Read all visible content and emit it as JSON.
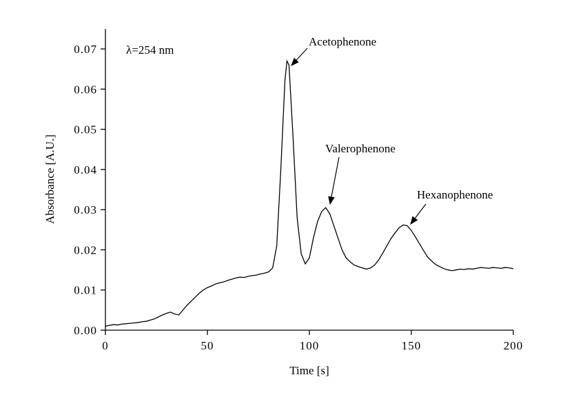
{
  "chart_data": {
    "type": "line",
    "x_label": "Time [s]",
    "y_label": "Absorbance [A.U.]",
    "annotations": [
      "λ=254 nm",
      "Acetophenone",
      "Valerophenone",
      "Hexanophenone"
    ],
    "color": "#000000",
    "xlim": [
      0,
      200
    ],
    "xticks": [
      0,
      50,
      100,
      150,
      200
    ],
    "ylim": [
      0,
      0.075
    ],
    "yticks": [
      {
        "value": 0,
        "label": "0.00"
      },
      0.01,
      0.02,
      0.03,
      0.04,
      0.05,
      0.06,
      0.07
    ],
    "x": [
      0,
      2,
      4,
      6,
      8,
      10,
      12,
      14,
      16,
      18,
      20,
      22,
      24,
      26,
      28,
      30,
      32,
      34,
      36,
      38,
      40,
      42,
      44,
      46,
      48,
      50,
      52,
      54,
      56,
      58,
      60,
      62,
      64,
      66,
      68,
      70,
      72,
      74,
      76,
      78,
      80,
      82,
      84,
      86,
      88,
      89,
      90,
      92,
      94,
      96,
      98,
      100,
      102,
      104,
      106,
      108,
      110,
      112,
      114,
      116,
      118,
      120,
      122,
      124,
      126,
      128,
      130,
      132,
      134,
      136,
      138,
      140,
      142,
      144,
      146,
      148,
      150,
      152,
      154,
      156,
      158,
      160,
      162,
      164,
      166,
      168,
      170,
      172,
      174,
      176,
      178,
      180,
      182,
      184,
      186,
      188,
      190,
      192,
      194,
      196,
      198,
      200
    ],
    "values": [
      0.001,
      0.0012,
      0.0014,
      0.0013,
      0.0015,
      0.0016,
      0.0017,
      0.0018,
      0.0019,
      0.0021,
      0.0022,
      0.0025,
      0.0028,
      0.0033,
      0.0038,
      0.0042,
      0.0045,
      0.004,
      0.0038,
      0.005,
      0.0062,
      0.0072,
      0.0082,
      0.0092,
      0.01,
      0.0106,
      0.011,
      0.0115,
      0.0118,
      0.012,
      0.0124,
      0.0127,
      0.013,
      0.0132,
      0.0131,
      0.0134,
      0.0136,
      0.0137,
      0.014,
      0.0142,
      0.0145,
      0.0155,
      0.021,
      0.04,
      0.062,
      0.067,
      0.066,
      0.048,
      0.028,
      0.019,
      0.0165,
      0.018,
      0.023,
      0.027,
      0.0295,
      0.0305,
      0.029,
      0.026,
      0.023,
      0.02,
      0.018,
      0.017,
      0.0162,
      0.0158,
      0.0155,
      0.0152,
      0.0155,
      0.0162,
      0.0175,
      0.0192,
      0.021,
      0.0228,
      0.0242,
      0.0255,
      0.0262,
      0.026,
      0.0248,
      0.0232,
      0.0215,
      0.0198,
      0.0182,
      0.0172,
      0.0163,
      0.0158,
      0.0153,
      0.015,
      0.0148,
      0.015,
      0.0152,
      0.0151,
      0.0153,
      0.0152,
      0.0154,
      0.0156,
      0.0155,
      0.0154,
      0.0156,
      0.0155,
      0.0154,
      0.0156,
      0.0155,
      0.0153
    ]
  }
}
